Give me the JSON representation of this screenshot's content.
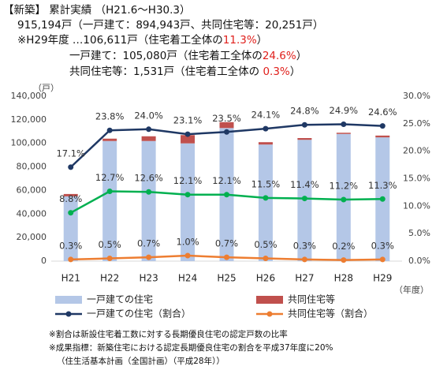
{
  "header": {
    "lines": [
      [
        {
          "text": "【新築】 累計実績 （H21.6～H30.3）"
        }
      ],
      [
        {
          "text": "915,194戸（一戸建て：894,943戸、共同住宅等：20,251戸）"
        }
      ],
      [
        {
          "text": "※H29年度 …106,611戸（住宅着工全体の"
        },
        {
          "text": "11.3%",
          "color": "#e0201c"
        },
        {
          "text": "）"
        }
      ],
      [
        {
          "text": "一戸建て：105,080戸（住宅着工全体の"
        },
        {
          "text": "24.6%",
          "color": "#e0201c"
        },
        {
          "text": "）"
        }
      ],
      [
        {
          "text": "共同住宅等：1,531戸（住宅着工全体の "
        },
        {
          "text": "0.3%",
          "color": "#e0201c"
        },
        {
          "text": "）"
        }
      ]
    ]
  },
  "chart_data": {
    "type": "bar",
    "y_label": "（戸）",
    "x_label": "（年度）",
    "categories": [
      "H21",
      "H22",
      "H23",
      "H24",
      "H25",
      "H26",
      "H27",
      "H28",
      "H29"
    ],
    "ylim": [
      0,
      140000
    ],
    "yticks": [
      0,
      {
        "value": 20000,
        "label": "20,000"
      },
      {
        "value": 40000,
        "label": "40,000"
      },
      {
        "value": 60000,
        "label": "60,000"
      },
      {
        "value": 80000,
        "label": "80,000"
      },
      {
        "value": 100000,
        "label": "100,000"
      },
      {
        "value": 120000,
        "label": "120,000"
      },
      {
        "value": 140000,
        "label": "140,000"
      }
    ],
    "y2lim": [
      0,
      30
    ],
    "y2ticks": [
      {
        "value": 0,
        "label": "0.0%"
      },
      {
        "value": 5,
        "label": "5.0%"
      },
      {
        "value": 10,
        "label": "10.0%"
      },
      {
        "value": 15,
        "label": "15.0%"
      },
      {
        "value": 20,
        "label": "20.0%"
      },
      {
        "value": 25,
        "label": "25.0%"
      },
      {
        "value": 30,
        "label": "30.0%"
      }
    ],
    "series": [
      {
        "name": "一戸建ての住宅",
        "kind": "bar",
        "color": "#b4c7e7",
        "values": [
          55000,
          102000,
          102000,
          100000,
          113000,
          99000,
          103000,
          108000,
          105080
        ]
      },
      {
        "name": "共同住宅等",
        "kind": "bar",
        "color": "#c0504d",
        "values": [
          2000,
          2000,
          4000,
          7000,
          5000,
          2000,
          1500,
          1000,
          1531
        ]
      },
      {
        "name": "一戸建ての住宅（割合）",
        "kind": "line",
        "axis": "y2",
        "color": "#1f3864",
        "values": [
          17.1,
          23.8,
          24.0,
          23.1,
          23.5,
          24.1,
          24.8,
          24.9,
          24.6
        ],
        "value_labels": [
          "17.1%",
          "23.8%",
          "24.0%",
          "23.1%",
          "23.5%",
          "24.1%",
          "24.8%",
          "24.9%",
          "24.6%"
        ]
      },
      {
        "kind": "line",
        "axis": "y2",
        "color": "#00b050",
        "values": [
          8.8,
          12.7,
          12.6,
          12.1,
          12.1,
          11.5,
          11.4,
          11.2,
          11.3
        ],
        "value_labels": [
          "8.8%",
          "12.7%",
          "12.6%",
          "12.1%",
          "12.1%",
          "11.5%",
          "11.4%",
          "11.2%",
          "11.3%"
        ]
      },
      {
        "name": "共同住宅等（割合）",
        "kind": "line",
        "axis": "y2",
        "color": "#ed7d31",
        "values": [
          0.3,
          0.5,
          0.7,
          1.0,
          0.7,
          0.5,
          0.3,
          0.2,
          0.3
        ],
        "value_labels": [
          "0.3%",
          "0.5%",
          "0.7%",
          "1.0%",
          "0.7%",
          "0.5%",
          "0.3%",
          "0.2%",
          "0.3%"
        ]
      }
    ]
  },
  "notes": [
    "※割合は新設住宅着工数に対する長期優良住宅の認定戸数の比率",
    "※成果指標：新築住宅における認定長期優良住宅の割合を平成37年度に20%",
    "（住生活基本計画（全国計画）（平成28年））"
  ]
}
